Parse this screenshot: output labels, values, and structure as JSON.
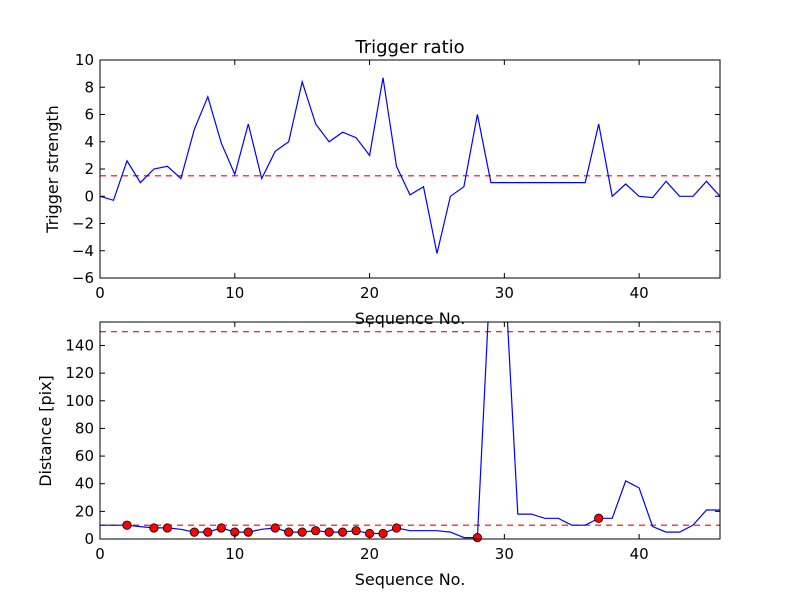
{
  "chart_data": [
    {
      "type": "line",
      "title": "Trigger ratio",
      "xlabel": "Sequence No.",
      "ylabel": "Trigger strength",
      "xlim": [
        0,
        46
      ],
      "ylim": [
        -6,
        10
      ],
      "xticks": [
        0,
        10,
        20,
        30,
        40
      ],
      "yticks": [
        -6,
        -4,
        -2,
        0,
        2,
        4,
        6,
        8,
        10
      ],
      "grid": false,
      "colors": {
        "line": "#0000ff",
        "threshold": "#ff0000"
      },
      "threshold": 1.5,
      "series": [
        {
          "x": [
            0,
            1,
            2,
            3,
            4,
            5,
            6,
            7,
            8,
            9,
            10,
            11,
            12,
            13,
            14,
            15,
            16,
            17,
            18,
            19,
            20,
            21,
            22,
            23,
            24,
            25,
            26,
            27,
            28,
            29,
            30,
            31,
            32,
            33,
            34,
            35,
            36,
            37,
            38,
            39,
            40,
            41,
            42,
            43,
            44,
            45,
            46
          ],
          "y": [
            0,
            -0.3,
            2.6,
            1.0,
            2.0,
            2.2,
            1.3,
            4.9,
            7.3,
            3.9,
            1.6,
            5.3,
            1.3,
            3.3,
            4.0,
            8.4,
            5.3,
            4.0,
            4.7,
            4.3,
            3.0,
            8.7,
            2.2,
            0.1,
            0.7,
            -4.2,
            0.0,
            0.7,
            6.0,
            1.0,
            1.0,
            1.0,
            1.0,
            1.0,
            1.0,
            1.0,
            1.0,
            5.3,
            0.0,
            0.9,
            0.0,
            -0.1,
            1.1,
            0.0,
            0.0,
            1.1,
            0.0
          ]
        }
      ]
    },
    {
      "type": "line",
      "title": "",
      "xlabel": "Sequence No.",
      "ylabel": "Distance [pix]",
      "xlim": [
        0,
        46
      ],
      "ylim": [
        0,
        157
      ],
      "xticks": [
        0,
        10,
        20,
        30,
        40
      ],
      "yticks": [
        0,
        20,
        40,
        60,
        80,
        100,
        120,
        140
      ],
      "grid": false,
      "colors": {
        "line": "#0000ff",
        "threshold": "#ff0000",
        "marker": "#ff0000"
      },
      "thresholds": [
        150,
        10
      ],
      "series": [
        {
          "x": [
            0,
            1,
            2,
            3,
            4,
            5,
            6,
            7,
            8,
            9,
            10,
            11,
            12,
            13,
            14,
            15,
            16,
            17,
            18,
            19,
            20,
            21,
            22,
            23,
            24,
            25,
            26,
            27,
            28,
            29,
            30,
            31,
            32,
            33,
            34,
            35,
            36,
            37,
            38,
            39,
            40,
            41,
            42,
            43,
            44,
            45,
            46
          ],
          "y": [
            10,
            10,
            10,
            9,
            8,
            8,
            7,
            5,
            5,
            8,
            5,
            5,
            7,
            8,
            5,
            5,
            6,
            5,
            5,
            6,
            4,
            4,
            8,
            6,
            6,
            6,
            5,
            1,
            1,
            200,
            200,
            18,
            18,
            15,
            15,
            10,
            10,
            15,
            15,
            42,
            37,
            9,
            5,
            5,
            10,
            21,
            21
          ]
        },
        {
          "x": [
            2,
            4,
            5,
            7,
            8,
            9,
            10,
            11,
            13,
            14,
            15,
            16,
            17,
            18,
            19,
            20,
            21,
            22,
            28,
            37
          ],
          "y": [
            10,
            8,
            8,
            5,
            5,
            8,
            5,
            5,
            8,
            5,
            5,
            6,
            5,
            5,
            6,
            4,
            4,
            8,
            1,
            15
          ]
        }
      ]
    }
  ]
}
